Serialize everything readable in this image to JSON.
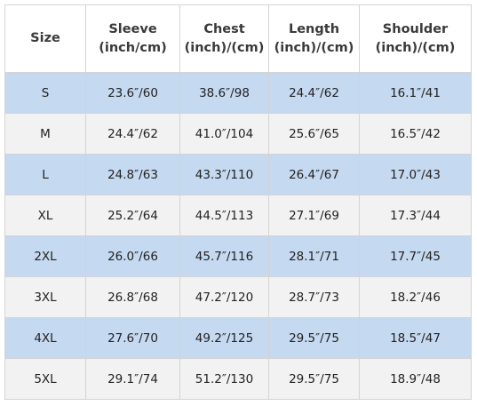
{
  "table": {
    "headers": [
      {
        "line1": "Size",
        "line2": ""
      },
      {
        "line1": "Sleeve",
        "line2": "(inch/cm)"
      },
      {
        "line1": "Chest",
        "line2": "(inch)/(cm)"
      },
      {
        "line1": "Length",
        "line2": "(inch)/(cm)"
      },
      {
        "line1": "Shoulder",
        "line2": "(inch)/(cm)"
      }
    ],
    "rows": [
      [
        "S",
        "23.6″/60",
        "38.6″/98",
        "24.4″/62",
        "16.1″/41"
      ],
      [
        "M",
        "24.4″/62",
        "41.0″/104",
        "25.6″/65",
        "16.5″/42"
      ],
      [
        "L",
        "24.8″/63",
        "43.3″/110",
        "26.4″/67",
        "17.0″/43"
      ],
      [
        "XL",
        "25.2″/64",
        "44.5″/113",
        "27.1″/69",
        "17.3″/44"
      ],
      [
        "2XL",
        "26.0″/66",
        "45.7″/116",
        "28.1″/71",
        "17.7″/45"
      ],
      [
        "3XL",
        "26.8″/68",
        "47.2″/120",
        "28.7″/73",
        "18.2″/46"
      ],
      [
        "4XL",
        "27.6″/70",
        "49.2″/125",
        "29.5″/75",
        "18.5″/47"
      ],
      [
        "5XL",
        "29.1″/74",
        "51.2″/130",
        "29.5″/75",
        "18.9″/48"
      ]
    ],
    "colors": {
      "odd_row": "#c5d9f0",
      "even_row": "#f2f2f2",
      "border": "#d4d4d4",
      "header_bg": "#ffffff"
    }
  }
}
